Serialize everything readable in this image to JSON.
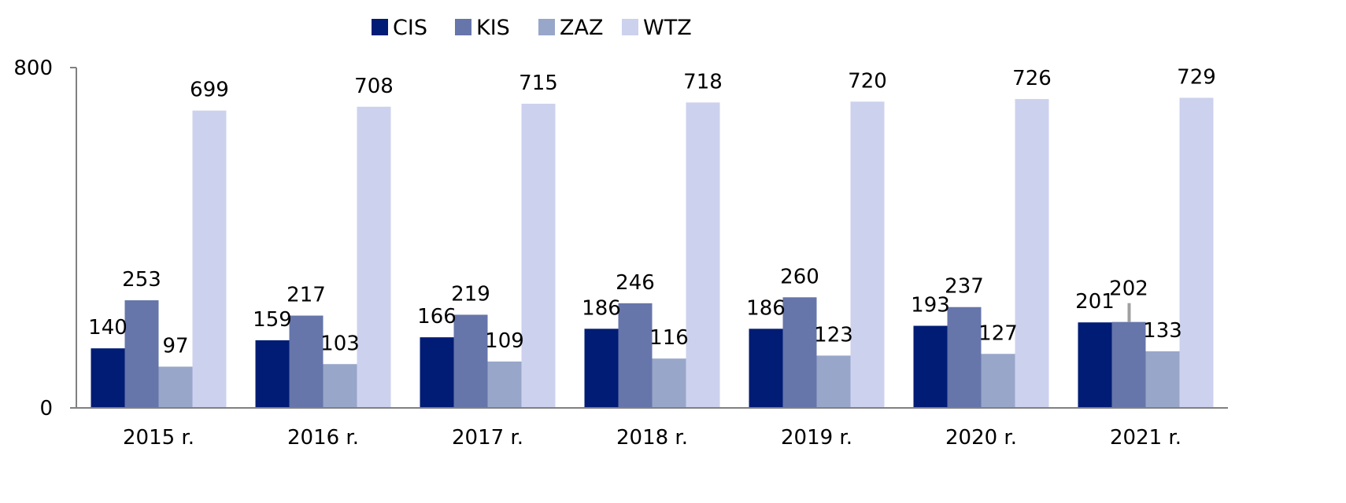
{
  "chart_data": {
    "type": "bar",
    "title": "",
    "xlabel": "",
    "ylabel": "",
    "ylim": [
      0,
      800
    ],
    "yticks": [
      "0",
      "800"
    ],
    "grid": false,
    "legend_position": "top-center",
    "categories": [
      "2015 r.",
      "2016 r.",
      "2017 r.",
      "2018 r.",
      "2019 r.",
      "2020 r.",
      "2021 r."
    ],
    "series": [
      {
        "name": "CIS",
        "color": "#001c75",
        "values": [
          140,
          159,
          166,
          186,
          186,
          193,
          201
        ]
      },
      {
        "name": "KIS",
        "color": "#6675aa",
        "values": [
          253,
          217,
          219,
          246,
          260,
          237,
          202
        ]
      },
      {
        "name": "ZAZ",
        "color": "#98a6c9",
        "values": [
          97,
          103,
          109,
          116,
          123,
          127,
          133
        ]
      },
      {
        "name": "WTZ",
        "color": "#ccd1ee",
        "values": [
          699,
          708,
          715,
          718,
          720,
          726,
          729
        ]
      }
    ]
  }
}
